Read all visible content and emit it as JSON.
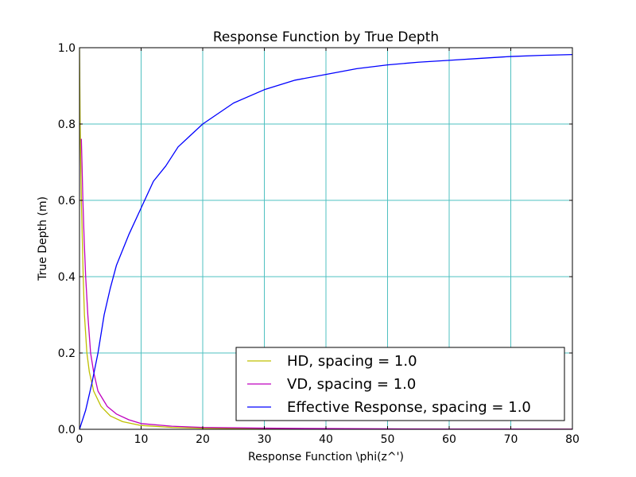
{
  "chart_data": {
    "type": "line",
    "title": "Response Function by True Depth",
    "xlabel": "Response Function \\phi(z^')",
    "ylabel": "True Depth (m)",
    "xlim": [
      0,
      80
    ],
    "ylim": [
      0,
      1.0
    ],
    "xticks": [
      "0",
      "10",
      "20",
      "30",
      "40",
      "50",
      "60",
      "70",
      "80"
    ],
    "yticks": [
      "0.0",
      "0.2",
      "0.4",
      "0.6",
      "0.8",
      "1.0"
    ],
    "grid": true,
    "grid_color": "#4fc0c0",
    "legend_position": "lower-right",
    "series": [
      {
        "name": "HD, spacing = 1.0",
        "color": "#bfbf00",
        "points": [
          [
            0.0,
            1.0
          ],
          [
            0.03,
            0.95
          ],
          [
            0.05,
            0.9
          ],
          [
            0.1,
            0.8
          ],
          [
            0.2,
            0.7
          ],
          [
            0.3,
            0.6
          ],
          [
            0.45,
            0.5
          ],
          [
            0.6,
            0.4
          ],
          [
            0.8,
            0.3
          ],
          [
            1.2,
            0.2
          ],
          [
            1.6,
            0.15
          ],
          [
            2.3,
            0.1
          ],
          [
            3.5,
            0.06
          ],
          [
            5.0,
            0.035
          ],
          [
            7.0,
            0.02
          ],
          [
            10.0,
            0.01
          ],
          [
            15.0,
            0.005
          ],
          [
            20.0,
            0.003
          ],
          [
            30.0,
            0.0015
          ],
          [
            40.0,
            0.0008
          ],
          [
            50.0,
            0.0005
          ],
          [
            60.0,
            0.0003
          ],
          [
            70.0,
            0.0002
          ],
          [
            80.0,
            0.0001
          ]
        ]
      },
      {
        "name": "VD, spacing = 1.0",
        "color": "#bf00bf",
        "points": [
          [
            0.3,
            0.76
          ],
          [
            0.4,
            0.7
          ],
          [
            0.55,
            0.6
          ],
          [
            0.75,
            0.5
          ],
          [
            1.0,
            0.4
          ],
          [
            1.35,
            0.3
          ],
          [
            1.8,
            0.2
          ],
          [
            2.3,
            0.15
          ],
          [
            3.0,
            0.1
          ],
          [
            4.5,
            0.06
          ],
          [
            6.0,
            0.04
          ],
          [
            8.0,
            0.025
          ],
          [
            10.0,
            0.015
          ],
          [
            15.0,
            0.008
          ],
          [
            20.0,
            0.005
          ],
          [
            30.0,
            0.003
          ],
          [
            40.0,
            0.002
          ],
          [
            50.0,
            0.0012
          ],
          [
            60.0,
            0.0008
          ],
          [
            70.0,
            0.0006
          ],
          [
            80.0,
            0.0004
          ]
        ]
      },
      {
        "name": "Effective Response, spacing = 1.0",
        "color": "#0000ff",
        "points": [
          [
            0,
            0.0
          ],
          [
            1,
            0.05
          ],
          [
            2,
            0.12
          ],
          [
            3,
            0.2
          ],
          [
            4,
            0.3
          ],
          [
            5,
            0.37
          ],
          [
            6,
            0.43
          ],
          [
            8,
            0.51
          ],
          [
            10,
            0.58
          ],
          [
            12,
            0.65
          ],
          [
            14,
            0.69
          ],
          [
            16,
            0.74
          ],
          [
            18,
            0.77
          ],
          [
            20,
            0.8
          ],
          [
            25,
            0.855
          ],
          [
            30,
            0.89
          ],
          [
            35,
            0.915
          ],
          [
            40,
            0.93
          ],
          [
            45,
            0.945
          ],
          [
            50,
            0.955
          ],
          [
            55,
            0.962
          ],
          [
            60,
            0.967
          ],
          [
            65,
            0.972
          ],
          [
            70,
            0.977
          ],
          [
            75,
            0.98
          ],
          [
            80,
            0.982
          ]
        ]
      }
    ]
  }
}
